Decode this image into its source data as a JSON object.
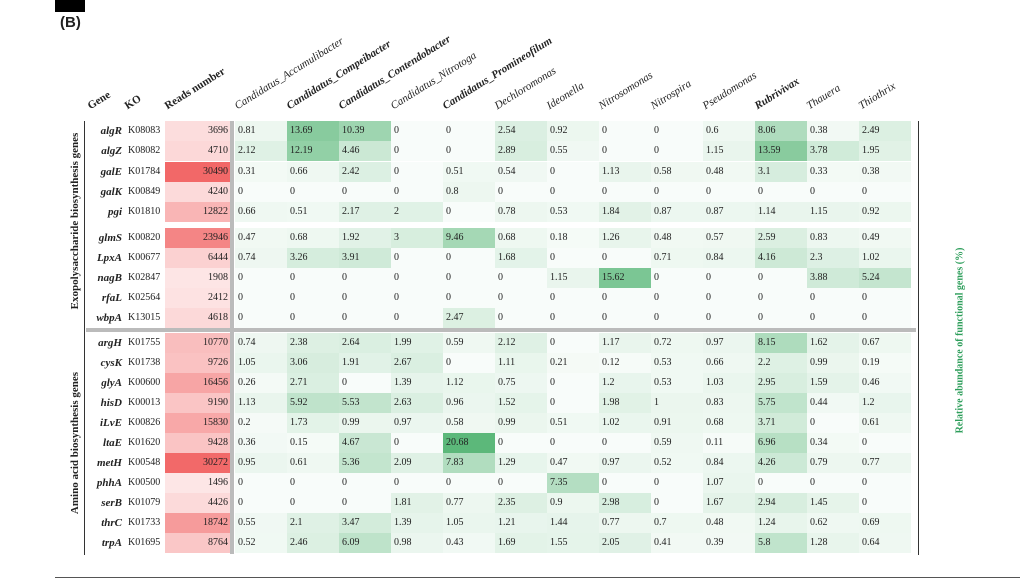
{
  "panel_label": "(B)",
  "colors": {
    "reads_max": "#f26868",
    "abundance_max": "#5cb87a",
    "legend_text": "#2e9e5b",
    "divider": "#bbbbbb"
  },
  "chart_data": {
    "type": "heatmap",
    "row_headers": [
      "Gene",
      "KO",
      "Reads number"
    ],
    "columns": [
      {
        "name": "Candidatus_Accumulibacter",
        "bold": false
      },
      {
        "name": "Candidatus_Compeibacter",
        "bold": true
      },
      {
        "name": "Candidatus_Contendobacter",
        "bold": true
      },
      {
        "name": "Candidatus_Nitrotoga",
        "bold": false
      },
      {
        "name": "Candidatus_Promineofilum",
        "bold": true
      },
      {
        "name": "Dechloromonas",
        "bold": false
      },
      {
        "name": "Ideonella",
        "bold": false
      },
      {
        "name": "Nitrosomonas",
        "bold": false
      },
      {
        "name": "Nitrospira",
        "bold": false
      },
      {
        "name": "Pseudomonas",
        "bold": false
      },
      {
        "name": "Rubrivivax",
        "bold": true
      },
      {
        "name": "Thauera",
        "bold": false
      },
      {
        "name": "Thiothrix",
        "bold": false
      }
    ],
    "color_label": "Relative abundance of functional genes (%)",
    "groups": [
      {
        "label": "Exopolysaccharide biosynthesis genes",
        "rows": [
          {
            "gene": "algR",
            "ko": "K08083",
            "reads": 3696,
            "values": [
              0.81,
              13.69,
              10.39,
              0,
              0,
              2.54,
              0.92,
              0,
              0,
              0.6,
              8.06,
              0.38,
              2.49
            ]
          },
          {
            "gene": "algZ",
            "ko": "K08082",
            "reads": 4710,
            "values": [
              2.12,
              12.19,
              4.46,
              0,
              0,
              2.89,
              0.55,
              0,
              0,
              1.15,
              13.59,
              3.78,
              1.95
            ]
          },
          {
            "gene": "galE",
            "ko": "K01784",
            "reads": 30490,
            "values": [
              0.31,
              0.66,
              2.42,
              0,
              0.51,
              0.54,
              0,
              1.13,
              0.58,
              0.48,
              3.1,
              0.33,
              0.38
            ]
          },
          {
            "gene": "galK",
            "ko": "K00849",
            "reads": 4240,
            "values": [
              0,
              0,
              0,
              0,
              0.8,
              0,
              0,
              0,
              0,
              0,
              0,
              0,
              0
            ]
          },
          {
            "gene": "pgi",
            "ko": "K01810",
            "reads": 12822,
            "values": [
              0.66,
              0.51,
              2.17,
              2,
              0,
              0.78,
              0.53,
              1.84,
              0.87,
              0.87,
              1.14,
              1.15,
              0.92
            ]
          },
          {
            "gene": "glmS",
            "ko": "K00820",
            "reads": 23946,
            "values": [
              0.47,
              0.68,
              1.92,
              3,
              9.46,
              0.68,
              0.18,
              1.26,
              0.48,
              0.57,
              2.59,
              0.83,
              0.49
            ]
          },
          {
            "gene": "LpxA",
            "ko": "K00677",
            "reads": 6444,
            "values": [
              0.74,
              3.26,
              3.91,
              0,
              0,
              1.68,
              0,
              0,
              0.71,
              0.84,
              4.16,
              2.3,
              1.02
            ]
          },
          {
            "gene": "nagB",
            "ko": "K02847",
            "reads": 1908,
            "values": [
              0,
              0,
              0,
              0,
              0,
              0,
              1.15,
              15.62,
              0,
              0,
              0,
              3.88,
              5.24
            ]
          },
          {
            "gene": "rfaL",
            "ko": "K02564",
            "reads": 2412,
            "values": [
              0,
              0,
              0,
              0,
              0,
              0,
              0,
              0,
              0,
              0,
              0,
              0,
              0
            ]
          },
          {
            "gene": "wbpA",
            "ko": "K13015",
            "reads": 4618,
            "values": [
              0,
              0,
              0,
              0,
              2.47,
              0,
              0,
              0,
              0,
              0,
              0,
              0,
              0
            ]
          }
        ]
      },
      {
        "label": "Amino acid biosynthesis genes",
        "rows": [
          {
            "gene": "argH",
            "ko": "K01755",
            "reads": 10770,
            "values": [
              0.74,
              2.38,
              2.64,
              1.99,
              0.59,
              2.12,
              0,
              1.17,
              0.72,
              0.97,
              8.15,
              1.62,
              0.67
            ]
          },
          {
            "gene": "cysK",
            "ko": "K01738",
            "reads": 9726,
            "values": [
              1.05,
              3.06,
              1.91,
              2.67,
              0,
              1.11,
              0.21,
              0.12,
              0.53,
              0.66,
              2.2,
              0.99,
              0.19
            ]
          },
          {
            "gene": "glyA",
            "ko": "K00600",
            "reads": 16456,
            "values": [
              0.26,
              2.71,
              0,
              1.39,
              1.12,
              0.75,
              0,
              1.2,
              0.53,
              1.03,
              2.95,
              1.59,
              0.46
            ]
          },
          {
            "gene": "hisD",
            "ko": "K00013",
            "reads": 9190,
            "values": [
              1.13,
              5.92,
              5.53,
              2.63,
              0.96,
              1.52,
              0,
              1.98,
              1,
              0.83,
              5.75,
              0.44,
              1.2
            ]
          },
          {
            "gene": "iLvE",
            "ko": "K00826",
            "reads": 15830,
            "values": [
              0.2,
              1.73,
              0.99,
              0.97,
              0.58,
              0.99,
              0.51,
              1.02,
              0.91,
              0.68,
              3.71,
              0,
              0.61
            ]
          },
          {
            "gene": "ltaE",
            "ko": "K01620",
            "reads": 9428,
            "values": [
              0.36,
              0.15,
              4.67,
              0,
              20.68,
              0,
              0,
              0,
              0.59,
              0.11,
              6.96,
              0.34,
              0
            ]
          },
          {
            "gene": "metH",
            "ko": "K00548",
            "reads": 30272,
            "values": [
              0.95,
              0.61,
              5.36,
              2.09,
              7.83,
              1.29,
              0.47,
              0.97,
              0.52,
              0.84,
              4.26,
              0.79,
              0.77
            ]
          },
          {
            "gene": "phhA",
            "ko": "K00500",
            "reads": 1496,
            "values": [
              0,
              0,
              0,
              0,
              0,
              0,
              7.35,
              0,
              0,
              1.07,
              0,
              0,
              0
            ]
          },
          {
            "gene": "serB",
            "ko": "K01079",
            "reads": 4426,
            "values": [
              0,
              0,
              0,
              1.81,
              0.77,
              2.35,
              0.9,
              2.98,
              0,
              1.67,
              2.94,
              1.45,
              0
            ]
          },
          {
            "gene": "thrC",
            "ko": "K01733",
            "reads": 18742,
            "values": [
              0.55,
              2.1,
              3.47,
              1.39,
              1.05,
              1.21,
              1.44,
              0.77,
              0.7,
              0.48,
              1.24,
              0.62,
              0.69
            ]
          },
          {
            "gene": "trpA",
            "ko": "K01695",
            "reads": 8764,
            "values": [
              0.52,
              2.46,
              6.09,
              0.98,
              0.43,
              1.69,
              1.55,
              2.05,
              0.41,
              0.39,
              5.8,
              1.28,
              0.64
            ]
          }
        ]
      }
    ]
  }
}
